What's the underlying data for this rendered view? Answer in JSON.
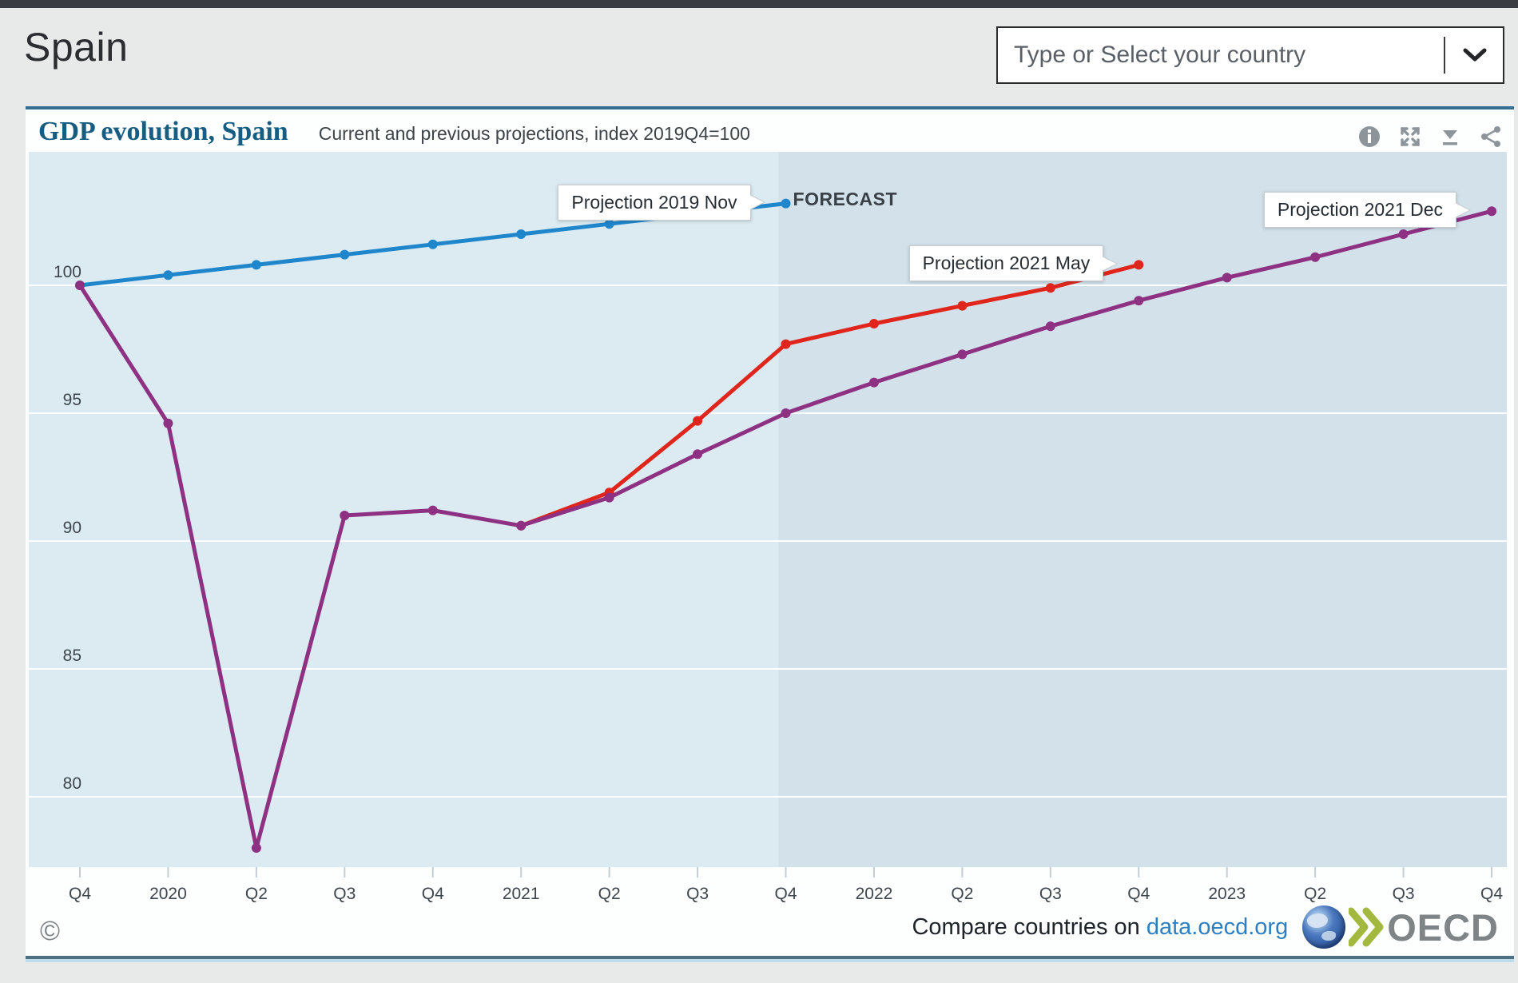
{
  "topbar": {},
  "header": {
    "title": "Spain",
    "country_selector": {
      "placeholder": "Type or Select your country"
    }
  },
  "card": {
    "title": "GDP evolution, Spain",
    "subtitle": "Current and previous projections, index 2019Q4=100",
    "toolbar_icons": [
      "info-icon",
      "fullscreen-icon",
      "download-icon",
      "share-icon"
    ],
    "footer": {
      "copyright": "©",
      "compare_text": "Compare countries on",
      "compare_link": "data.oecd.org",
      "logo_text": "OECD"
    }
  },
  "colors": {
    "plot_bg": "#dcebf2",
    "forecast_bg": "#d2e1ea",
    "gridline": "#ffffff",
    "tick": "#c3ced5",
    "axis_text": "#3e464c",
    "blue": "#1f86cc",
    "red": "#e0261c",
    "purple": "#8e3183"
  },
  "chart_data": {
    "type": "line",
    "title": "GDP evolution, Spain",
    "subtitle": "Current and previous projections, index 2019Q4=100",
    "x_start": "2019-Q4",
    "x_labels": [
      "Q4",
      "2020",
      "Q2",
      "Q3",
      "Q4",
      "2021",
      "Q2",
      "Q3",
      "Q4",
      "2022",
      "Q2",
      "Q3",
      "Q4",
      "2023",
      "Q2",
      "Q3",
      "Q4"
    ],
    "yticks": [
      100,
      95,
      90,
      85,
      80
    ],
    "ylim": [
      77.2,
      105.2
    ],
    "grid": "horizontal-white-lines",
    "legend": "end-of-line-tooltips",
    "forecast": {
      "label": "FORECAST",
      "starts_at_label_index": 8
    },
    "series": [
      {
        "name": "Projection 2019 Nov",
        "color": "#1f86cc",
        "start_index": 0,
        "values": [
          100,
          100.4,
          100.8,
          101.2,
          101.6,
          102.0,
          102.4,
          102.8,
          103.2
        ]
      },
      {
        "name": "Projection 2021 May",
        "color": "#e0261c",
        "start_index": 5,
        "values": [
          90.6,
          91.9,
          94.7,
          97.7,
          98.5,
          99.2,
          99.9,
          100.8
        ]
      },
      {
        "name": "Projection 2021 Dec",
        "color": "#8e3183",
        "start_index": 0,
        "values": [
          100,
          94.6,
          78.0,
          91.0,
          91.2,
          90.6,
          91.7,
          93.4,
          95.0,
          96.2,
          97.3,
          98.4,
          99.4,
          100.3,
          101.1,
          102.0,
          102.9
        ]
      }
    ]
  }
}
